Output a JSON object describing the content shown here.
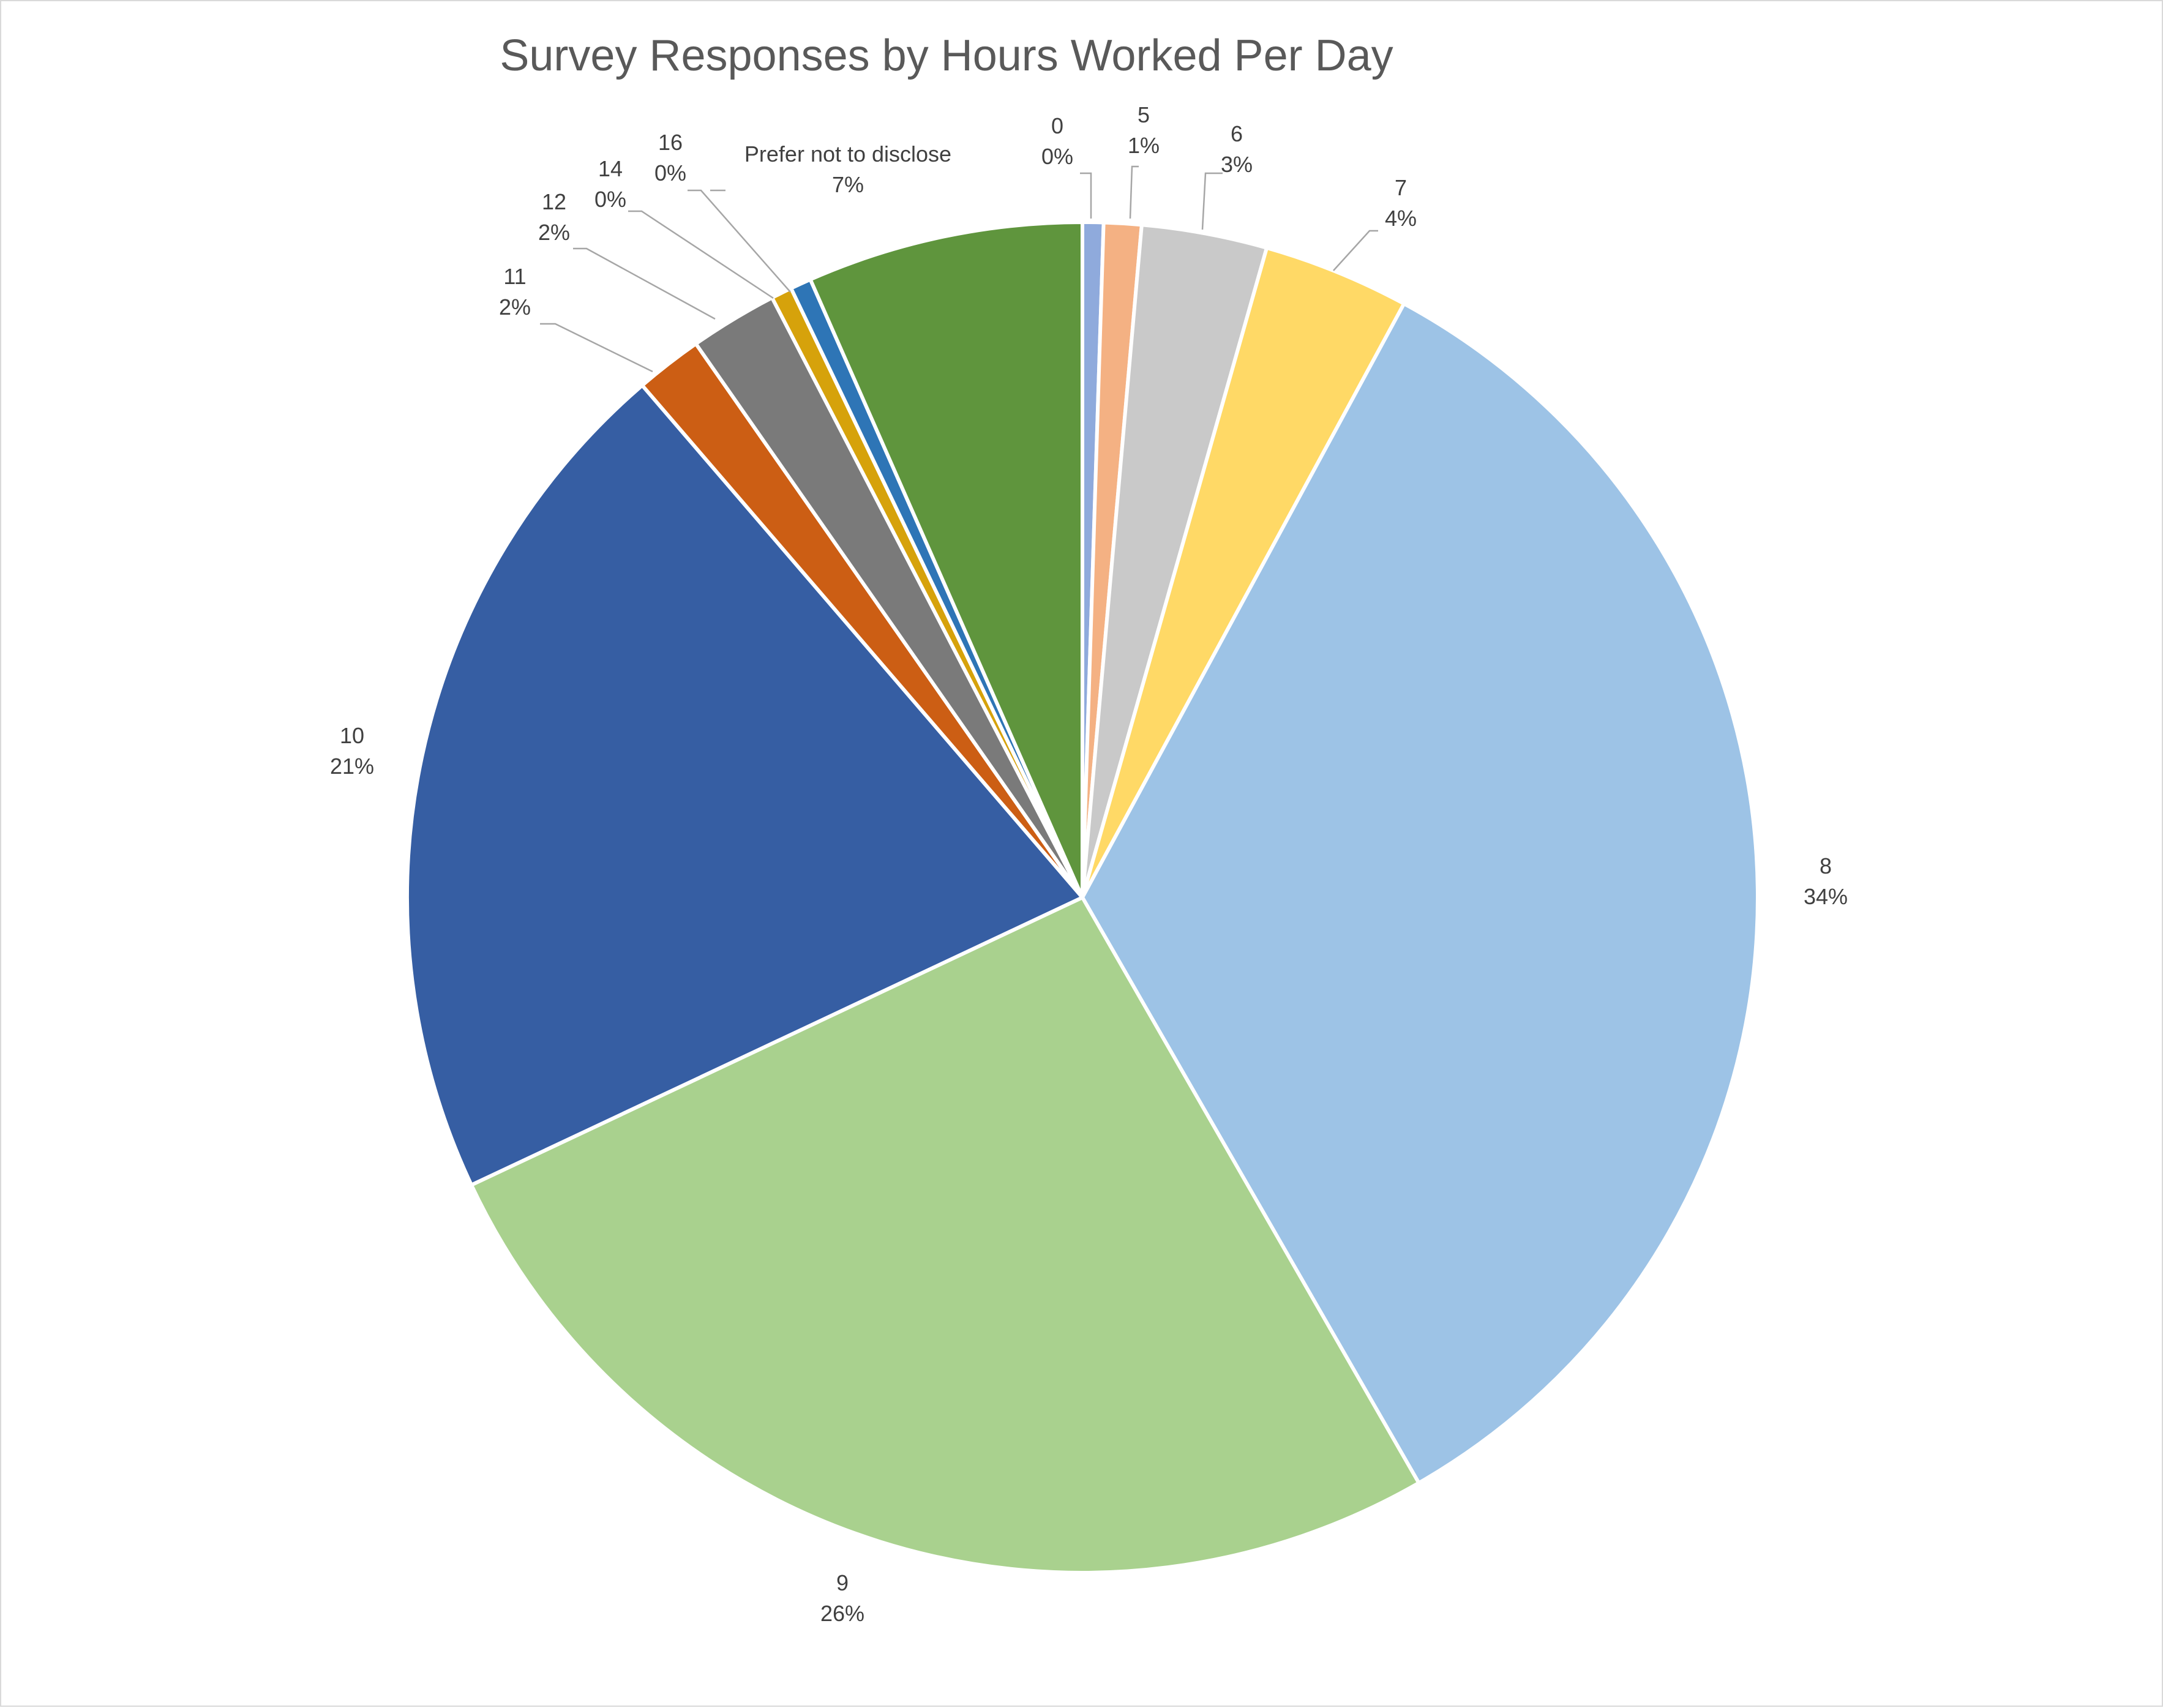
{
  "chart_data": {
    "type": "pie",
    "title": "Survey Responses by Hours Worked Per Day",
    "legend": "none",
    "slices": [
      {
        "label": "0",
        "value": 0.5,
        "percent_label": "0%",
        "color": "#8faadc"
      },
      {
        "label": "5",
        "value": 0.9,
        "percent_label": "1%",
        "color": "#f4b183"
      },
      {
        "label": "6",
        "value": 3.0,
        "percent_label": "3%",
        "color": "#c9c9c9"
      },
      {
        "label": "7",
        "value": 3.5,
        "percent_label": "4%",
        "color": "#ffd966"
      },
      {
        "label": "8",
        "value": 33.8,
        "percent_label": "34%",
        "color": "#9dc3e6"
      },
      {
        "label": "9",
        "value": 26.3,
        "percent_label": "26%",
        "color": "#a9d18e"
      },
      {
        "label": "10",
        "value": 20.7,
        "percent_label": "21%",
        "color": "#365ea3"
      },
      {
        "label": "11",
        "value": 1.6,
        "percent_label": "2%",
        "color": "#cc5e14"
      },
      {
        "label": "12",
        "value": 2.1,
        "percent_label": "2%",
        "color": "#7a7a7a"
      },
      {
        "label": "14",
        "value": 0.5,
        "percent_label": "0%",
        "color": "#d6a20b"
      },
      {
        "label": "16",
        "value": 0.5,
        "percent_label": "0%",
        "color": "#2e75b6"
      },
      {
        "label": "Prefer not to disclose",
        "value": 6.6,
        "percent_label": "7%",
        "color": "#5f953d"
      }
    ]
  }
}
